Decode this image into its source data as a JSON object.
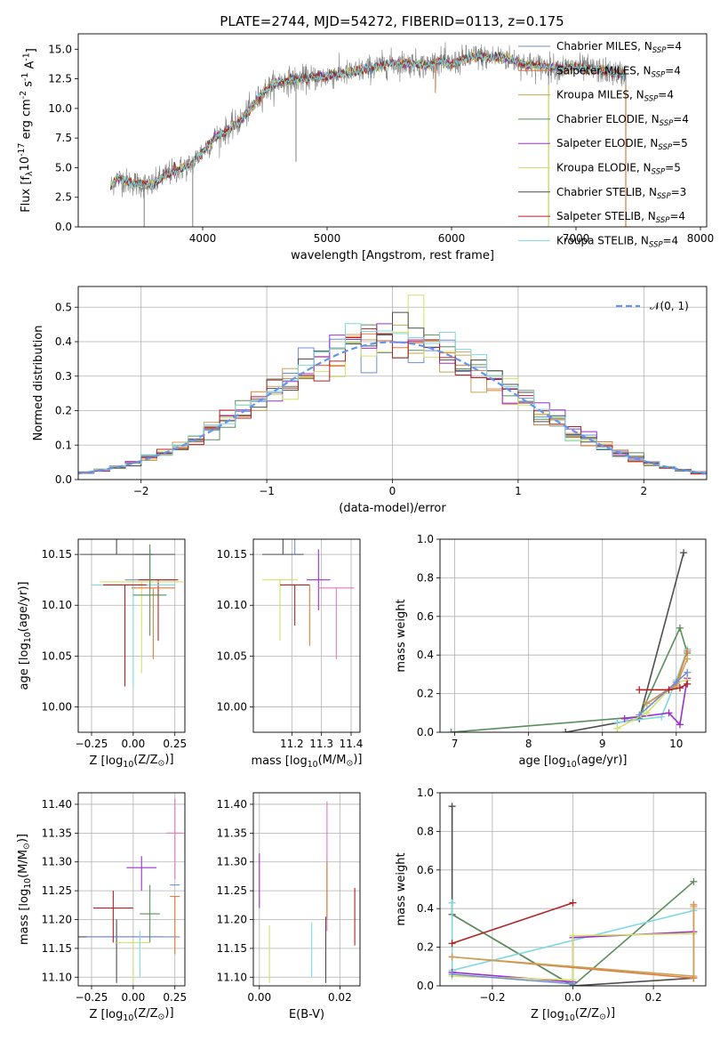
{
  "figure": {
    "title": "PLATE=2744, MJD=54272, FIBERID=0113, z=0.175"
  },
  "colors": {
    "data": "#808080",
    "grid": "#b0b0b0",
    "gauss": "#6495ed",
    "models": [
      "#6f8fd0",
      "#e07b39",
      "#c9a25a",
      "#5a8f5a",
      "#9932cc",
      "#d4e06a",
      "#4d4d4d",
      "#b22222",
      "#7fd8e0"
    ],
    "extra_pink": "#e377c2"
  },
  "chart_data": [
    {
      "id": "spectrum",
      "type": "line",
      "title": "PLATE=2744, MJD=54272, FIBERID=0113, z=0.175",
      "xlabel": "wavelength [Angstrom, rest frame]",
      "ylabel": "Flux [f$_\\lambda$10$^{-17}$ erg cm$^{-2}$ s$^{-1}$ A$^{-1}$]",
      "xlim": [
        3000,
        8050
      ],
      "ylim": [
        0,
        16.3
      ],
      "xticks": [
        4000,
        5000,
        6000,
        7000,
        8000
      ],
      "yticks": [
        0.0,
        2.5,
        5.0,
        7.5,
        10.0,
        12.5,
        15.0
      ],
      "grid": false,
      "legend_position": "right",
      "series_continuum": {
        "x": [
          3260,
          3300,
          3400,
          3500,
          3600,
          3700,
          3800,
          3900,
          4000,
          4100,
          4200,
          4300,
          4400,
          4500,
          4600,
          4700,
          4800,
          4900,
          5000,
          5100,
          5200,
          5300,
          5400,
          5500,
          5600,
          5700,
          5800,
          5900,
          6000,
          6100,
          6200,
          6300,
          6400,
          6500,
          6600,
          6700,
          6800,
          6900,
          7000,
          7100,
          7200,
          7300,
          7400
        ],
        "y": [
          3.3,
          4.1,
          3.8,
          3.6,
          3.5,
          4.4,
          4.8,
          5.2,
          6.4,
          7.5,
          8.2,
          8.9,
          10.2,
          11.5,
          12.2,
          12.4,
          12.5,
          12.6,
          12.7,
          12.9,
          13.0,
          13.3,
          13.5,
          13.8,
          13.8,
          13.8,
          13.6,
          14.0,
          13.7,
          14.2,
          14.4,
          14.3,
          14.3,
          14.1,
          13.7,
          13.6,
          13.5,
          13.4,
          13.5,
          13.3,
          13.2,
          13.0,
          12.9
        ]
      },
      "series": [
        {
          "name": "Chabrier MILES, N$_{SSP}$=4",
          "label": "Chabrier MILES, N",
          "sub": "SSP",
          "n": "=4"
        },
        {
          "name": "Salpeter MILES, N$_{SSP}$=4",
          "label": "Salpeter MILES, N",
          "sub": "SSP",
          "n": "=4"
        },
        {
          "name": "Kroupa MILES, N$_{SSP}$=4",
          "label": "Kroupa MILES, N",
          "sub": "SSP",
          "n": "=4"
        },
        {
          "name": "Chabrier ELODIE, N$_{SSP}$=4",
          "label": "Chabrier ELODIE, N",
          "sub": "SSP",
          "n": "=4"
        },
        {
          "name": "Salpeter ELODIE, N$_{SSP}$=5",
          "label": "Salpeter ELODIE, N",
          "sub": "SSP",
          "n": "=5"
        },
        {
          "name": "Kroupa ELODIE, N$_{SSP}$=5",
          "label": "Kroupa ELODIE, N",
          "sub": "SSP",
          "n": "=5"
        },
        {
          "name": "Chabrier STELIB, N$_{SSP}$=3",
          "label": "Chabrier STELIB, N",
          "sub": "SSP",
          "n": "=3"
        },
        {
          "name": "Salpeter STELIB, N$_{SSP}$=4",
          "label": "Salpeter STELIB, N",
          "sub": "SSP",
          "n": "=4"
        },
        {
          "name": "Kroupa STELIB, N$_{SSP}$=4",
          "label": "Kroupa STELIB, N",
          "sub": "SSP",
          "n": "=4"
        }
      ],
      "dips": [
        {
          "x": 3530,
          "y": 0.0
        },
        {
          "x": 3920,
          "y": 0.0
        },
        {
          "x": 4750,
          "y": 5.5
        },
        {
          "x": 5870,
          "y": 11.3
        },
        {
          "x": 6780,
          "y": 0.0
        },
        {
          "x": 7400,
          "y": 0.0
        }
      ]
    },
    {
      "id": "residuals",
      "type": "histogram",
      "xlabel": "(data-model)/error",
      "ylabel": "Normed distribution",
      "xlim": [
        -2.5,
        2.5
      ],
      "ylim": [
        0,
        0.56
      ],
      "xticks": [
        -2,
        -1,
        0,
        1,
        2
      ],
      "yticks": [
        0.0,
        0.1,
        0.2,
        0.3,
        0.4,
        0.5
      ],
      "grid": true,
      "legend": {
        "label": "$\\mathcal{N}(0,1)$",
        "text": "𝒩(0, 1)",
        "position": "top-right"
      },
      "bins": [
        -2.5,
        2.5,
        40
      ],
      "curve": "N(0,1)"
    },
    {
      "id": "age_vs_Z",
      "type": "errorbar",
      "xlabel": "Z [log$_{10}$($Z/Z_\\odot$)]",
      "ylabel": "age  [log$_{10}$($age/yr$)]",
      "xlim": [
        -0.33,
        0.31
      ],
      "ylim": [
        9.975,
        10.165
      ],
      "xticks": [
        -0.25,
        0.0,
        0.25
      ],
      "yticks": [
        10.0,
        10.05,
        10.1,
        10.15
      ],
      "grid": true,
      "points": [
        {
          "x": -0.1,
          "y": 10.15,
          "xerr": 0.22,
          "yerr": [
            0.0,
            0.17
          ],
          "series": 6
        },
        {
          "x": 0.13,
          "y": 10.15,
          "xerr": 0.12,
          "yerr": [
            0.0,
            0.0
          ],
          "series": 6
        },
        {
          "x": 0.1,
          "y": 10.125,
          "xerr": 0.15,
          "yerr": [
            0.01,
            0.03
          ],
          "series": 0
        },
        {
          "x": 0.15,
          "y": 10.125,
          "xerr": 0.12,
          "yerr": [
            0.06,
            0.0
          ],
          "series": 7
        },
        {
          "x": 0.05,
          "y": 10.123,
          "xerr": 0.25,
          "yerr": [
            0.09,
            0.0
          ],
          "series": 5
        },
        {
          "x": 0.0,
          "y": 10.12,
          "xerr": 0.25,
          "yerr": [
            0.1,
            0.0
          ],
          "series": 8
        },
        {
          "x": -0.05,
          "y": 10.12,
          "xerr": 0.13,
          "yerr": [
            0.1,
            0.0
          ],
          "series": 7
        },
        {
          "x": 0.12,
          "y": 10.117,
          "xerr": 0.13,
          "yerr": [
            0.07,
            0.0
          ],
          "series": 1
        },
        {
          "x": 0.1,
          "y": 10.11,
          "xerr": 0.1,
          "yerr": [
            0.04,
            0.05
          ],
          "series": 3
        }
      ]
    },
    {
      "id": "age_vs_mass",
      "type": "errorbar",
      "xlabel": "mass [log$_{10}$($M/M_\\odot$)]",
      "ylabel": "",
      "xlim": [
        11.07,
        11.43
      ],
      "ylim": [
        9.975,
        10.165
      ],
      "xticks": [
        11.2,
        11.3,
        11.4
      ],
      "yticks": [
        10.0,
        10.05,
        10.1,
        10.15
      ],
      "grid": true,
      "points": [
        {
          "x": 11.17,
          "y": 10.15,
          "xerr": 0.07,
          "yerr": [
            0.0,
            0.17
          ],
          "series": 6
        },
        {
          "x": 11.21,
          "y": 10.15,
          "xerr": 0.0,
          "yerr": [
            0.0,
            0.13
          ],
          "series": 0
        },
        {
          "x": 11.29,
          "y": 10.125,
          "xerr": 0.04,
          "yerr": [
            0.03,
            0.03
          ],
          "series": 4
        },
        {
          "x": 11.35,
          "y": 10.117,
          "xerr": 0.06,
          "yerr": [
            0.07,
            0.0
          ],
          "series": 9
        },
        {
          "x": 11.16,
          "y": 10.125,
          "xerr": 0.06,
          "yerr": [
            0.06,
            0.0
          ],
          "series": 5
        },
        {
          "x": 11.26,
          "y": 10.12,
          "xerr": 0.0,
          "yerr": [
            0.06,
            0.0
          ],
          "series": 1
        },
        {
          "x": 11.21,
          "y": 10.12,
          "xerr": 0.05,
          "yerr": [
            0.04,
            0.0
          ],
          "series": 7
        }
      ]
    },
    {
      "id": "mass_weight_vs_age",
      "type": "line",
      "xlabel": "age  [log$_{10}$($age/yr$)]",
      "ylabel": "mass weight",
      "xlim": [
        6.8,
        10.4
      ],
      "ylim": [
        0.0,
        1.0
      ],
      "xticks": [
        7,
        8,
        9,
        10
      ],
      "yticks": [
        0.0,
        0.2,
        0.4,
        0.6,
        0.8,
        1.0
      ],
      "grid": true
    },
    {
      "id": "mass_vs_Z",
      "type": "errorbar",
      "xlabel": "Z [log$_{10}$($Z/Z_\\odot$)]",
      "ylabel": "mass [log$_{10}$($M/M_\\odot$)]",
      "xlim": [
        -0.33,
        0.31
      ],
      "ylim": [
        11.085,
        11.42
      ],
      "xticks": [
        -0.25,
        0.0,
        0.25
      ],
      "yticks": [
        11.1,
        11.15,
        11.2,
        11.25,
        11.3,
        11.35,
        11.4
      ],
      "grid": true
    },
    {
      "id": "mass_vs_ebv",
      "type": "errorbar",
      "xlabel": "E(B-V)",
      "ylabel": "",
      "xlim": [
        -0.0015,
        0.025
      ],
      "ylim": [
        11.085,
        11.42
      ],
      "xticks": [
        0.0,
        0.02
      ],
      "yticks": [
        11.1,
        11.15,
        11.2,
        11.25,
        11.3,
        11.35,
        11.4
      ],
      "grid": true
    },
    {
      "id": "mass_weight_vs_Z",
      "type": "line",
      "xlabel": "Z [log$_{10}$($Z/Z_\\odot$)]",
      "ylabel": "mass weight",
      "xlim": [
        -0.33,
        0.33
      ],
      "ylim": [
        0.0,
        1.0
      ],
      "xticks": [
        -0.2,
        0.0,
        0.2
      ],
      "yticks": [
        0.0,
        0.2,
        0.4,
        0.6,
        0.8,
        1.0
      ],
      "grid": true
    }
  ]
}
